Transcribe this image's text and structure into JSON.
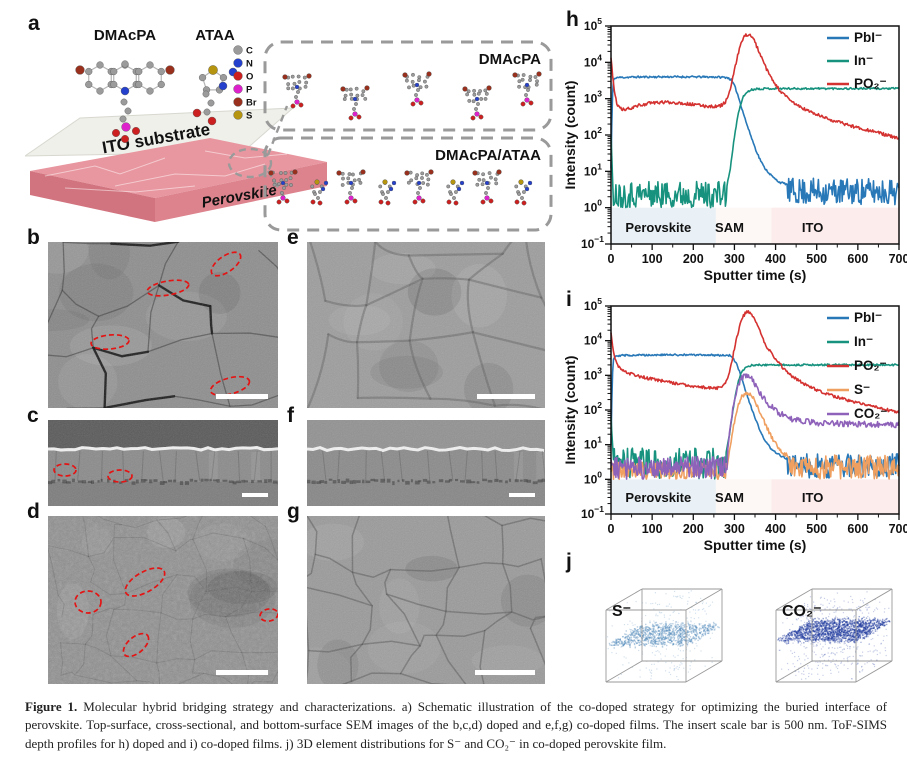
{
  "panels": {
    "a": "a",
    "b": "b",
    "c": "c",
    "d": "d",
    "e": "e",
    "f": "f",
    "g": "g",
    "h": "h",
    "i": "i",
    "j": "j"
  },
  "panel_a": {
    "molecule1_label": "DMAcPA",
    "molecule2_label": "ATAA",
    "atom_legend": [
      {
        "symbol": "C",
        "color": "#9b9b9b"
      },
      {
        "symbol": "N",
        "color": "#2440cc"
      },
      {
        "symbol": "O",
        "color": "#cc2020"
      },
      {
        "symbol": "P",
        "color": "#dd22cc"
      },
      {
        "symbol": "Br",
        "color": "#99301e"
      },
      {
        "symbol": "S",
        "color": "#b5940f"
      }
    ],
    "substrate_label": "ITO substrate",
    "film_label": "Perovskite",
    "film_top_color": "#e8969f",
    "film_front_color": "#dd838d",
    "inset1_label": "DMAcPA",
    "inset2_label": "DMAcPA/ATAA"
  },
  "sem": {
    "defect_marker_color": "#e41414",
    "scale_bar_color": "#ffffff"
  },
  "chart_data": [
    {
      "type": "line",
      "panel": "h",
      "title": "",
      "xlabel": "Sputter time (s)",
      "ylabel": "Intensity (count)",
      "xlim": [
        0,
        700
      ],
      "xticks": [
        0,
        100,
        200,
        300,
        400,
        500,
        600,
        700
      ],
      "ylog": true,
      "ylim_exp": [
        -1,
        5
      ],
      "legend_position": "top-right",
      "regions": [
        {
          "label": "Perovskite",
          "from": 0,
          "to": 255,
          "color": "#e9f1f6",
          "label_t": 115
        },
        {
          "label": "SAM",
          "from": 255,
          "to": 390,
          "color": "#fdf8f5",
          "label_t": 288
        },
        {
          "label": "ITO",
          "from": 390,
          "to": 700,
          "color": "#fcecec",
          "label_t": 490
        }
      ],
      "series": [
        {
          "name": "PbI⁻",
          "color": "#2878b8",
          "jitter": 0.03,
          "anchors": [
            [
              0,
              12
            ],
            [
              3,
              900
            ],
            [
              6,
              3200
            ],
            [
              12,
              3800
            ],
            [
              60,
              3950
            ],
            [
              150,
              4000
            ],
            [
              250,
              3950
            ],
            [
              282,
              3850
            ],
            [
              292,
              3300
            ],
            [
              300,
              2300
            ],
            [
              308,
              1300
            ],
            [
              316,
              650
            ],
            [
              324,
              330
            ],
            [
              332,
              170
            ],
            [
              340,
              95
            ],
            [
              350,
              45
            ],
            [
              360,
              24
            ],
            [
              372,
              13
            ],
            [
              384,
              9
            ],
            [
              396,
              6.5
            ],
            [
              410,
              5
            ],
            [
              425,
              4.5
            ]
          ],
          "noise": [
            {
              "from": 428,
              "to": 700,
              "min": 1.2,
              "max": 6.5
            }
          ]
        },
        {
          "name": "In⁻",
          "color": "#17927e",
          "jitter": 0.03,
          "anchors": [
            [
              0,
              90
            ],
            [
              2,
              25
            ],
            [
              4,
              6
            ],
            [
              282,
              4
            ],
            [
              290,
              12
            ],
            [
              298,
              60
            ],
            [
              306,
              250
            ],
            [
              314,
              650
            ],
            [
              322,
              1150
            ],
            [
              330,
              1500
            ],
            [
              340,
              1750
            ],
            [
              352,
              1870
            ],
            [
              380,
              1900
            ],
            [
              700,
              1900
            ]
          ],
          "noise": [
            {
              "from": 5,
              "to": 281,
              "min": 1,
              "max": 5.5
            }
          ]
        },
        {
          "name": "PO₂⁻",
          "color": "#d43230",
          "jitter": 0.05,
          "anchors": [
            [
              0,
              14000
            ],
            [
              4,
              4500
            ],
            [
              8,
              1600
            ],
            [
              14,
              750
            ],
            [
              22,
              540
            ],
            [
              32,
              490
            ],
            [
              45,
              540
            ],
            [
              65,
              640
            ],
            [
              90,
              740
            ],
            [
              115,
              790
            ],
            [
              140,
              800
            ],
            [
              170,
              760
            ],
            [
              200,
              690
            ],
            [
              230,
              630
            ],
            [
              252,
              610
            ],
            [
              266,
              640
            ],
            [
              276,
              760
            ],
            [
              284,
              1100
            ],
            [
              292,
              2200
            ],
            [
              300,
              6000
            ],
            [
              308,
              16000
            ],
            [
              316,
              33000
            ],
            [
              324,
              50000
            ],
            [
              330,
              58000
            ],
            [
              336,
              59000
            ],
            [
              342,
              52000
            ],
            [
              350,
              36000
            ],
            [
              358,
              22000
            ],
            [
              366,
              13000
            ],
            [
              374,
              8200
            ],
            [
              382,
              5300
            ],
            [
              390,
              3600
            ],
            [
              400,
              2400
            ],
            [
              412,
              1600
            ],
            [
              425,
              1150
            ],
            [
              440,
              820
            ],
            [
              460,
              590
            ],
            [
              485,
              430
            ],
            [
              510,
              330
            ],
            [
              540,
              250
            ],
            [
              570,
              200
            ],
            [
              600,
              160
            ],
            [
              640,
              125
            ],
            [
              670,
              100
            ],
            [
              700,
              78
            ]
          ],
          "noise": []
        }
      ]
    },
    {
      "type": "line",
      "panel": "i",
      "title": "",
      "xlabel": "Sputter time (s)",
      "ylabel": "Intensity (count)",
      "xlim": [
        0,
        700
      ],
      "xticks": [
        0,
        100,
        200,
        300,
        400,
        500,
        600,
        700
      ],
      "ylog": true,
      "ylim_exp": [
        -1,
        5
      ],
      "legend_position": "top-right",
      "regions": [
        {
          "label": "Perovskite",
          "from": 0,
          "to": 255,
          "color": "#e9f1f6",
          "label_t": 115
        },
        {
          "label": "SAM",
          "from": 255,
          "to": 390,
          "color": "#fdf8f5",
          "label_t": 288
        },
        {
          "label": "ITO",
          "from": 390,
          "to": 700,
          "color": "#fcecec",
          "label_t": 490
        }
      ],
      "series": [
        {
          "name": "PbI⁻",
          "color": "#2878b8",
          "jitter": 0.03,
          "anchors": [
            [
              0,
              10
            ],
            [
              3,
              800
            ],
            [
              6,
              3000
            ],
            [
              12,
              3700
            ],
            [
              60,
              3850
            ],
            [
              150,
              3900
            ],
            [
              250,
              3850
            ],
            [
              288,
              3750
            ],
            [
              296,
              3200
            ],
            [
              304,
              2300
            ],
            [
              312,
              1300
            ],
            [
              320,
              650
            ],
            [
              328,
              330
            ],
            [
              336,
              170
            ],
            [
              344,
              95
            ],
            [
              354,
              45
            ],
            [
              364,
              22
            ],
            [
              376,
              12
            ],
            [
              388,
              8
            ],
            [
              400,
              6
            ],
            [
              415,
              4.5
            ],
            [
              428,
              4
            ]
          ],
          "noise": [
            {
              "from": 430,
              "to": 700,
              "min": 1.1,
              "max": 5.5
            }
          ]
        },
        {
          "name": "In⁻",
          "color": "#17927e",
          "jitter": 0.03,
          "anchors": [
            [
              0,
              60
            ],
            [
              3,
              15
            ],
            [
              5,
              7
            ],
            [
              280,
              6
            ],
            [
              288,
              20
            ],
            [
              296,
              90
            ],
            [
              304,
              350
            ],
            [
              312,
              850
            ],
            [
              320,
              1400
            ],
            [
              330,
              1750
            ],
            [
              342,
              1950
            ],
            [
              360,
              2000
            ],
            [
              700,
              2000
            ]
          ],
          "noise": [
            {
              "from": 6,
              "to": 279,
              "min": 1,
              "max": 8
            }
          ]
        },
        {
          "name": "PO₂⁻",
          "color": "#d43230",
          "jitter": 0.05,
          "anchors": [
            [
              0,
              18000
            ],
            [
              4,
              7000
            ],
            [
              9,
              3000
            ],
            [
              16,
              1900
            ],
            [
              25,
              1500
            ],
            [
              40,
              1200
            ],
            [
              60,
              1000
            ],
            [
              85,
              850
            ],
            [
              115,
              720
            ],
            [
              145,
              620
            ],
            [
              175,
              545
            ],
            [
              205,
              480
            ],
            [
              230,
              445
            ],
            [
              252,
              425
            ],
            [
              264,
              435
            ],
            [
              274,
              490
            ],
            [
              282,
              700
            ],
            [
              290,
              1600
            ],
            [
              298,
              4500
            ],
            [
              306,
              13000
            ],
            [
              314,
              30000
            ],
            [
              322,
              52000
            ],
            [
              328,
              65000
            ],
            [
              334,
              67000
            ],
            [
              340,
              61000
            ],
            [
              348,
              45000
            ],
            [
              356,
              28000
            ],
            [
              364,
              16000
            ],
            [
              372,
              9800
            ],
            [
              380,
              6500
            ],
            [
              390,
              4300
            ],
            [
              400,
              3000
            ],
            [
              412,
              2000
            ],
            [
              424,
              1400
            ],
            [
              438,
              1000
            ],
            [
              455,
              720
            ],
            [
              475,
              520
            ],
            [
              500,
              380
            ],
            [
              530,
              280
            ],
            [
              560,
              215
            ],
            [
              595,
              165
            ],
            [
              630,
              130
            ],
            [
              665,
              105
            ],
            [
              700,
              85
            ]
          ],
          "noise": []
        },
        {
          "name": "S⁻",
          "color": "#ef9f5f",
          "jitter": 0.07,
          "anchors": [
            [
              283,
              3
            ],
            [
              291,
              10
            ],
            [
              299,
              40
            ],
            [
              307,
              110
            ],
            [
              315,
              210
            ],
            [
              323,
              290
            ],
            [
              331,
              320
            ],
            [
              338,
              295
            ],
            [
              346,
              215
            ],
            [
              354,
              140
            ],
            [
              362,
              85
            ],
            [
              370,
              52
            ],
            [
              378,
              33
            ],
            [
              386,
              21
            ],
            [
              394,
              14
            ],
            [
              402,
              10
            ],
            [
              412,
              7
            ],
            [
              422,
              5.5
            ],
            [
              432,
              4.5
            ]
          ],
          "noise": [
            {
              "from": 0,
              "to": 282,
              "min": 1,
              "max": 3.2
            },
            {
              "from": 434,
              "to": 700,
              "min": 1,
              "max": 5
            }
          ]
        },
        {
          "name": "CO₂⁻",
          "color": "#8f62ba",
          "jitter": 0.1,
          "anchors": [
            [
              283,
              6
            ],
            [
              291,
              40
            ],
            [
              299,
              180
            ],
            [
              307,
              480
            ],
            [
              315,
              780
            ],
            [
              323,
              950
            ],
            [
              330,
              1000
            ],
            [
              337,
              930
            ],
            [
              345,
              700
            ],
            [
              353,
              470
            ],
            [
              361,
              320
            ],
            [
              370,
              225
            ],
            [
              380,
              165
            ],
            [
              390,
              125
            ],
            [
              400,
              100
            ],
            [
              412,
              80
            ],
            [
              425,
              67
            ],
            [
              440,
              57
            ],
            [
              460,
              50
            ],
            [
              485,
              45
            ],
            [
              520,
              42
            ],
            [
              700,
              38
            ]
          ],
          "noise": [
            {
              "from": 0,
              "to": 282,
              "min": 1,
              "max": 4.5
            }
          ]
        }
      ]
    }
  ],
  "panel_j": {
    "cubes": [
      {
        "label": "S⁻",
        "point_color": "#4e86b8"
      },
      {
        "label": "CO₂⁻",
        "point_color": "#1f3a9e"
      }
    ]
  },
  "caption": {
    "label": "Figure 1.",
    "text": "Molecular hybrid bridging strategy and characterizations. a) Schematic illustration of the co-doped strategy for optimizing the buried interface of perovskite. Top-surface, cross-sectional, and bottom-surface SEM images of the b,c,d) doped and e,f,g) co-doped films. The insert scale bar is 500 nm. ToF-SIMS depth profiles for h) doped and i) co-doped films. j) 3D element distributions for S⁻ and CO₂⁻ in co-doped perovskite film."
  }
}
